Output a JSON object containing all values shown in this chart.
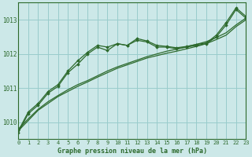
{
  "title": "Graphe pression niveau de la mer (hPa)",
  "bg_color": "#cce8e8",
  "line_color": "#2d6a2d",
  "grid_color": "#99cccc",
  "x_values": [
    0,
    1,
    2,
    3,
    4,
    5,
    6,
    7,
    8,
    9,
    10,
    11,
    12,
    13,
    14,
    15,
    16,
    17,
    18,
    19,
    20,
    21,
    22,
    23
  ],
  "line_straight1": [
    1009.75,
    1010.05,
    1010.35,
    1010.55,
    1010.75,
    1010.9,
    1011.05,
    1011.18,
    1011.32,
    1011.45,
    1011.58,
    1011.68,
    1011.78,
    1011.88,
    1011.95,
    1012.02,
    1012.08,
    1012.15,
    1012.22,
    1012.3,
    1012.42,
    1012.55,
    1012.8,
    1013.0
  ],
  "line_straight2": [
    1009.8,
    1010.1,
    1010.38,
    1010.6,
    1010.78,
    1010.95,
    1011.1,
    1011.22,
    1011.36,
    1011.5,
    1011.62,
    1011.72,
    1011.82,
    1011.92,
    1012.0,
    1012.08,
    1012.14,
    1012.21,
    1012.28,
    1012.36,
    1012.48,
    1012.62,
    1012.85,
    1013.05
  ],
  "line_marker1": [
    1009.7,
    1010.25,
    1010.5,
    1010.85,
    1011.05,
    1011.45,
    1011.7,
    1012.0,
    1012.2,
    1012.1,
    1012.3,
    1012.25,
    1012.4,
    1012.35,
    1012.2,
    1012.2,
    1012.15,
    1012.2,
    1012.25,
    1012.3,
    1012.5,
    1012.85,
    1013.3,
    1013.05
  ],
  "line_marker2": [
    1009.75,
    1010.3,
    1010.55,
    1010.9,
    1011.1,
    1011.5,
    1011.8,
    1012.05,
    1012.25,
    1012.2,
    1012.3,
    1012.25,
    1012.45,
    1012.38,
    1012.25,
    1012.22,
    1012.18,
    1012.22,
    1012.28,
    1012.32,
    1012.55,
    1012.92,
    1013.35,
    1013.1
  ],
  "ylim": [
    1009.5,
    1013.5
  ],
  "xlim": [
    0,
    23
  ],
  "yticks": [
    1010,
    1011,
    1012,
    1013
  ],
  "xticks": [
    0,
    1,
    2,
    3,
    4,
    5,
    6,
    7,
    8,
    9,
    10,
    11,
    12,
    13,
    14,
    15,
    16,
    17,
    18,
    19,
    20,
    21,
    22,
    23
  ]
}
